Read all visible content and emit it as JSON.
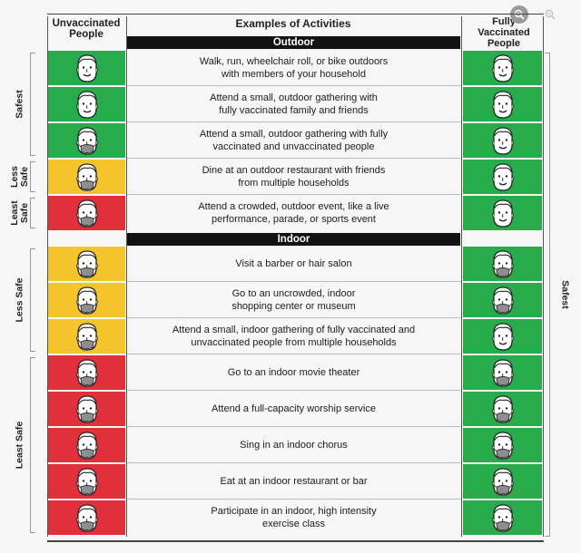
{
  "headers": {
    "unvaccinated": [
      "Unvaccinated",
      "People"
    ],
    "activities": "Examples of Activities",
    "vaccinated": [
      "Fully",
      "Vaccinated",
      "People"
    ]
  },
  "sections": {
    "outdoor": "Outdoor",
    "indoor": "Indoor"
  },
  "colors": {
    "green": "#27ab4b",
    "yellow": "#f3c42b",
    "red": "#e0313b",
    "bar": "#121212"
  },
  "rows": [
    {
      "text": [
        "Walk, run, wheelchair roll, or bike outdoors",
        "with members of your household"
      ],
      "unvax": "green",
      "vax": "green",
      "unvax_mask": false,
      "vax_mask": false
    },
    {
      "text": [
        "Attend a small, outdoor gathering with",
        "fully vaccinated family and friends"
      ],
      "unvax": "green",
      "vax": "green",
      "unvax_mask": false,
      "vax_mask": false
    },
    {
      "text": [
        "Attend a small, outdoor gathering with fully",
        "vaccinated and unvaccinated people"
      ],
      "unvax": "green",
      "vax": "green",
      "unvax_mask": true,
      "vax_mask": false
    },
    {
      "text": [
        "Dine at an outdoor restaurant with friends",
        "from multiple households"
      ],
      "unvax": "yellow",
      "vax": "green",
      "unvax_mask": true,
      "vax_mask": false
    },
    {
      "text": [
        "Attend a crowded, outdoor event, like a live",
        "performance, parade, or sports event"
      ],
      "unvax": "red",
      "vax": "green",
      "unvax_mask": true,
      "vax_mask": false
    },
    {
      "text": [
        "Visit a barber or hair salon"
      ],
      "unvax": "yellow",
      "vax": "green",
      "unvax_mask": true,
      "vax_mask": true
    },
    {
      "text": [
        "Go to an uncrowded, indoor",
        "shopping center or museum"
      ],
      "unvax": "yellow",
      "vax": "green",
      "unvax_mask": true,
      "vax_mask": true
    },
    {
      "text": [
        "Attend a small, indoor gathering of fully vaccinated and",
        "unvaccinated people from multiple households"
      ],
      "unvax": "yellow",
      "vax": "green",
      "unvax_mask": true,
      "vax_mask": false
    },
    {
      "text": [
        "Go to an indoor movie theater"
      ],
      "unvax": "red",
      "vax": "green",
      "unvax_mask": true,
      "vax_mask": true
    },
    {
      "text": [
        "Attend a full-capacity worship service"
      ],
      "unvax": "red",
      "vax": "green",
      "unvax_mask": true,
      "vax_mask": true
    },
    {
      "text": [
        "Sing in an indoor chorus"
      ],
      "unvax": "red",
      "vax": "green",
      "unvax_mask": true,
      "vax_mask": true
    },
    {
      "text": [
        "Eat at an indoor restaurant or bar"
      ],
      "unvax": "red",
      "vax": "green",
      "unvax_mask": true,
      "vax_mask": true
    },
    {
      "text": [
        "Participate in an indoor, high intensity",
        "exercise class"
      ],
      "unvax": "red",
      "vax": "green",
      "unvax_mask": true,
      "vax_mask": true
    }
  ],
  "left_labels": [
    {
      "text": [
        "Safest"
      ],
      "rows": [
        0,
        2
      ]
    },
    {
      "text": [
        "Less",
        "Safe"
      ],
      "rows": [
        3,
        3
      ]
    },
    {
      "text": [
        "Least",
        "Safe"
      ],
      "rows": [
        4,
        4
      ]
    },
    {
      "text": [
        "Less Safe"
      ],
      "rows": [
        5,
        7
      ]
    },
    {
      "text": [
        "Least Safe"
      ],
      "rows": [
        8,
        12
      ]
    }
  ],
  "right_label": "Safest"
}
